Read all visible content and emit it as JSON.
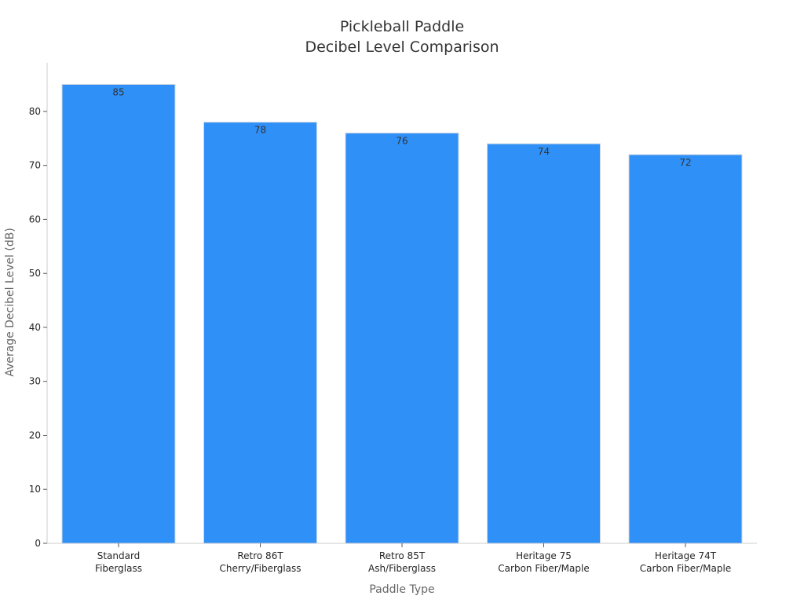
{
  "chart_data": {
    "type": "bar",
    "title": [
      "Pickleball Paddle",
      "Decibel Level Comparison"
    ],
    "xlabel": "Paddle Type",
    "ylabel": "Average Decibel Level (dB)",
    "categories": [
      [
        "Standard",
        "Fiberglass"
      ],
      [
        "Retro 86T",
        "Cherry/Fiberglass"
      ],
      [
        "Retro 85T",
        "Ash/Fiberglass"
      ],
      [
        "Heritage 75",
        "Carbon Fiber/Maple"
      ],
      [
        "Heritage 74T",
        "Carbon Fiber/Maple"
      ]
    ],
    "values": [
      85,
      78,
      76,
      74,
      72
    ],
    "data_labels": [
      "85",
      "78",
      "76",
      "74",
      "72"
    ],
    "ylim": [
      0,
      89
    ],
    "yticks": [
      0,
      10,
      20,
      30,
      40,
      50,
      60,
      70,
      80
    ],
    "bar_color": "#2f90f8",
    "bar_edge_color": "#d0d8e0",
    "grid": false,
    "legend": "none"
  }
}
